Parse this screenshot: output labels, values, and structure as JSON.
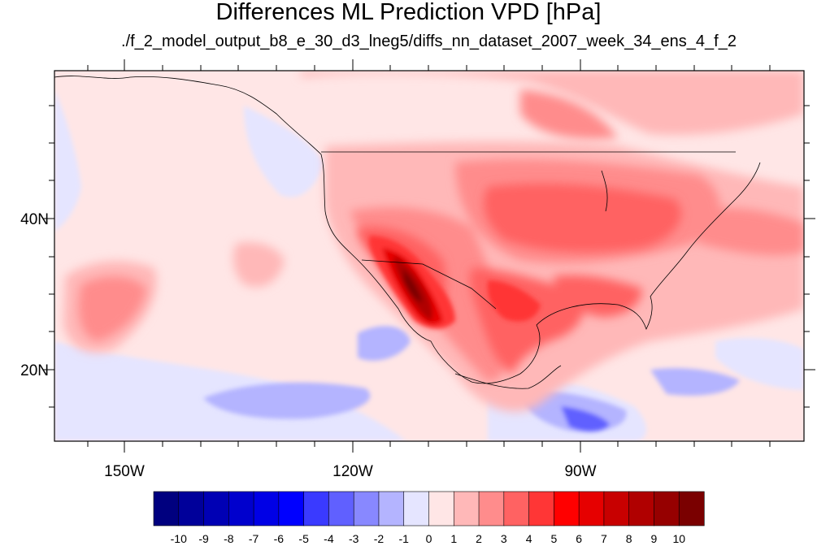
{
  "title": "Differences ML Prediction VPD [hPa]",
  "subtitle": "./f_2_model_output_b8_e_30_d3_lneg5/diffs_nn_dataset_2007_week_34_ens_4_f_2",
  "map": {
    "projection": "cylindrical-equidistant",
    "lon_range": [
      -160,
      -62
    ],
    "lat_range": [
      10,
      59
    ],
    "lat_labels": [
      "40N",
      "20N"
    ],
    "lon_labels": [
      "150W",
      "120W",
      "90W"
    ]
  },
  "colorbar": {
    "labels": [
      "-10",
      "-9",
      "-8",
      "-7",
      "-6",
      "-5",
      "-4",
      "-3",
      "-2",
      "-1",
      "0",
      "1",
      "2",
      "3",
      "4",
      "5",
      "6",
      "7",
      "8",
      "9",
      "10"
    ],
    "colors": [
      "#00007f",
      "#00009a",
      "#0000b4",
      "#0000cd",
      "#0000e6",
      "#0000ff",
      "#3a3aff",
      "#6060ff",
      "#8888ff",
      "#b4b4ff",
      "#e5e5ff",
      "#ffe6e6",
      "#ffb8b8",
      "#ff8c8c",
      "#ff6262",
      "#ff3636",
      "#ff0000",
      "#e60000",
      "#c80000",
      "#b00000",
      "#960000",
      "#7a0000"
    ]
  }
}
